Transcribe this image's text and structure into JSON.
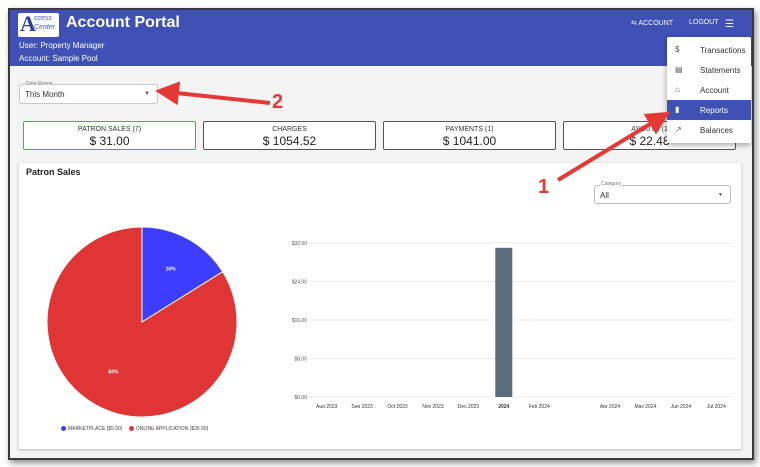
{
  "header": {
    "logo_letter": "A",
    "logo_line1": "ccess",
    "logo_line2": "Center",
    "title": "Account Portal",
    "user": "User: Property Manager",
    "account": "Account: Sample Pool",
    "account_link": "⇆ ACCOUNT",
    "logout": "LOGOUT",
    "menu_icon": "hamburger-menu-icon"
  },
  "menu": {
    "items": [
      {
        "label": "Transactions",
        "icon": "$",
        "active": false
      },
      {
        "label": "Statements",
        "icon": "▤",
        "active": false
      },
      {
        "label": "Account",
        "icon": "⌂",
        "active": false
      },
      {
        "label": "Reports",
        "icon": "▮",
        "active": true
      },
      {
        "label": "Balances",
        "icon": "↗",
        "active": false
      }
    ]
  },
  "filters": {
    "date_range_label": "Date Range",
    "date_range_value": "This Month",
    "category_label": "Category",
    "category_value": "All"
  },
  "summary": [
    {
      "title": "PATRON SALES (7)",
      "value": "$ 31.00"
    },
    {
      "title": "CHARGES",
      "value": "$ 1054.52"
    },
    {
      "title": "PAYMENTS (1)",
      "value": "$ 1041.00"
    },
    {
      "title": "AYOUTS (1",
      "value": "$ 22.48"
    }
  ],
  "panel": {
    "title": "Patron Sales"
  },
  "chart_data": [
    {
      "type": "pie",
      "slices": [
        {
          "label": "MARKETPLACE ($5.00)",
          "value": 5.0,
          "percent": "16%",
          "color": "#3d3dff"
        },
        {
          "label": "ONLINE APPLICATION ($26.00)",
          "value": 26.0,
          "percent": "84%",
          "color": "#e03535"
        }
      ]
    },
    {
      "type": "bar",
      "categories": [
        "Aug 2023",
        "Sep 2023",
        "Oct 2023",
        "Nov 2023",
        "Dec 2023",
        "2024",
        "Feb 2024",
        "",
        "Apr 2024",
        "May 2024",
        "Jun 2024",
        "Jul 2024"
      ],
      "values": [
        0,
        0,
        0,
        0,
        0,
        31,
        0,
        0,
        0,
        0,
        0,
        0
      ],
      "y_ticks": [
        "$0.00",
        "$8.00",
        "$16.00",
        "$24.00",
        "$32.00"
      ],
      "ylim": [
        0,
        32
      ],
      "bar_color": "#5a6b7b",
      "grid": true
    }
  ],
  "annotations": [
    {
      "label": "1",
      "color": "#e53935"
    },
    {
      "label": "2",
      "color": "#e53935"
    }
  ]
}
